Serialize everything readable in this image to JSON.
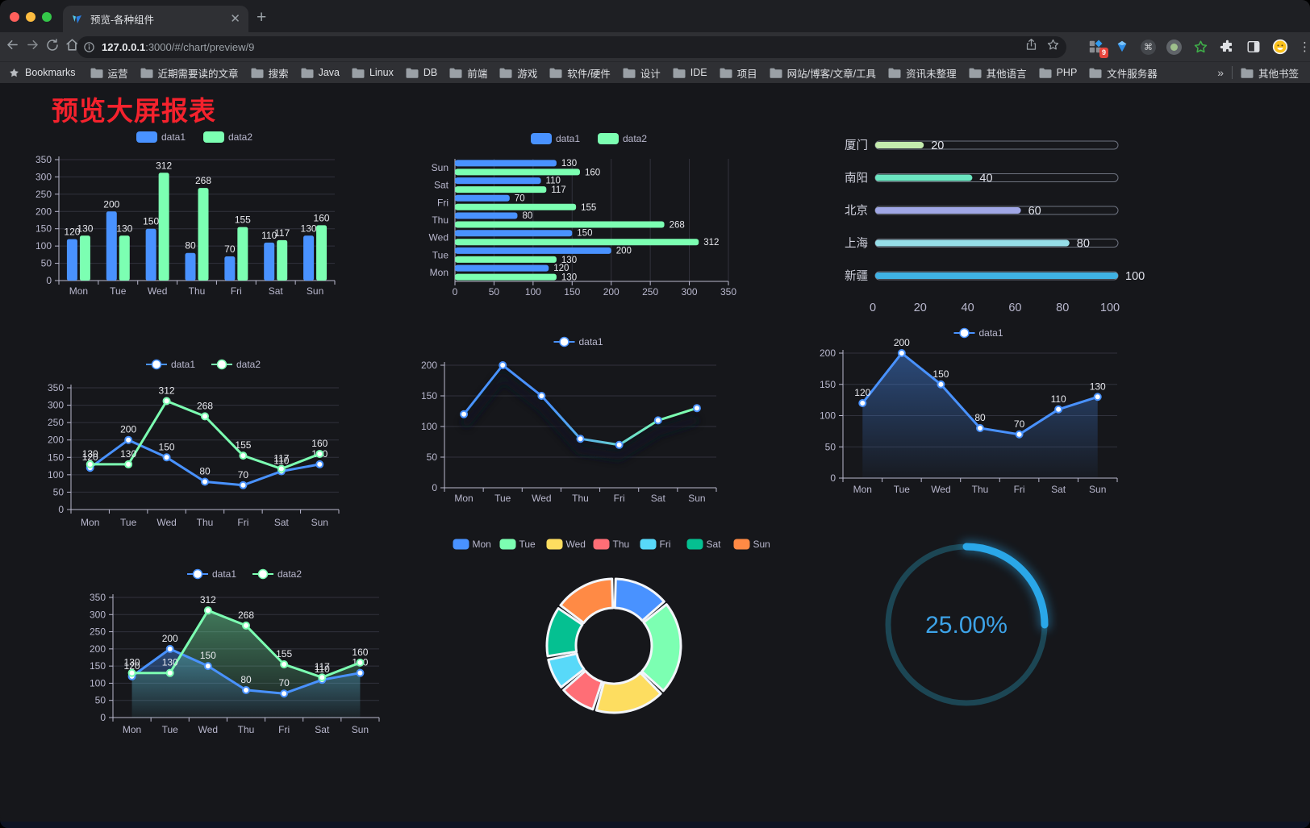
{
  "browser": {
    "tab_title": "预览-各种组件",
    "url_host": "127.0.0.1",
    "url_rest": ":3000/#/chart/preview/9",
    "bookmarks_label": "Bookmarks",
    "bookmark_folders": [
      "运营",
      "近期需要读的文章",
      "搜索",
      "Java",
      "Linux",
      "DB",
      "前端",
      "游戏",
      "软件/硬件",
      "设计",
      "IDE",
      "项目",
      "网站/博客/文章/工具",
      "资讯未整理",
      "其他语言",
      "PHP",
      "文件服务器"
    ],
    "overflow_chevron": "»",
    "other_bookmarks": "其他书签",
    "extension_badge": "9"
  },
  "page": {
    "title": "预览大屏报表"
  },
  "chart_data": [
    {
      "id": "bar-vertical",
      "type": "bar",
      "categories": [
        "Mon",
        "Tue",
        "Wed",
        "Thu",
        "Fri",
        "Sat",
        "Sun"
      ],
      "series": [
        {
          "name": "data1",
          "color": "#4992ff",
          "values": [
            120,
            200,
            150,
            80,
            70,
            110,
            130
          ]
        },
        {
          "name": "data2",
          "color": "#7cffb2",
          "values": [
            130,
            130,
            312,
            268,
            155,
            117,
            160
          ]
        }
      ],
      "ylim": [
        0,
        350
      ],
      "yticks": [
        0,
        50,
        100,
        150,
        200,
        250,
        300,
        350
      ]
    },
    {
      "id": "bar-horizontal",
      "type": "hbar",
      "categories_top_to_bottom": [
        "Sun",
        "Sat",
        "Fri",
        "Thu",
        "Wed",
        "Tue",
        "Mon"
      ],
      "series": [
        {
          "name": "data1",
          "color": "#4992ff",
          "values_top_to_bottom": [
            130,
            110,
            70,
            80,
            150,
            200,
            120
          ]
        },
        {
          "name": "data2",
          "color": "#7cffb2",
          "values_top_to_bottom": [
            160,
            117,
            155,
            268,
            312,
            130,
            130
          ]
        }
      ],
      "xlim": [
        0,
        350
      ],
      "xticks": [
        0,
        50,
        100,
        150,
        200,
        250,
        300,
        350
      ]
    },
    {
      "id": "progress",
      "type": "progress",
      "items": [
        {
          "label": "厦门",
          "value": 20,
          "color": "#c4ebad"
        },
        {
          "label": "南阳",
          "value": 40,
          "color": "#6be6c1"
        },
        {
          "label": "北京",
          "value": 60,
          "color": "#a0a7e6"
        },
        {
          "label": "上海",
          "value": 80,
          "color": "#96dee8"
        },
        {
          "label": "新疆",
          "value": 100,
          "color": "#3fb1e3"
        }
      ],
      "xlim": [
        0,
        100
      ],
      "xticks": [
        0,
        20,
        40,
        60,
        80,
        100
      ]
    },
    {
      "id": "line-dual",
      "type": "line",
      "categories": [
        "Mon",
        "Tue",
        "Wed",
        "Thu",
        "Fri",
        "Sat",
        "Sun"
      ],
      "series": [
        {
          "name": "data1",
          "color": "#4992ff",
          "values": [
            120,
            200,
            150,
            80,
            70,
            110,
            130
          ],
          "labels": true
        },
        {
          "name": "data2",
          "color": "#7cffb2",
          "values": [
            130,
            130,
            312,
            268,
            155,
            117,
            160
          ],
          "labels": true
        }
      ],
      "ylim": [
        0,
        350
      ],
      "yticks": [
        0,
        50,
        100,
        150,
        200,
        250,
        300,
        350
      ]
    },
    {
      "id": "line-gradient",
      "type": "line",
      "categories": [
        "Mon",
        "Tue",
        "Wed",
        "Thu",
        "Fri",
        "Sat",
        "Sun"
      ],
      "series": [
        {
          "name": "data1",
          "color": "#4992ff",
          "gradient": [
            "#4992ff",
            "#7cffb2"
          ],
          "shadow": true,
          "values": [
            120,
            200,
            150,
            80,
            70,
            110,
            130
          ]
        }
      ],
      "ylim": [
        0,
        200
      ],
      "yticks": [
        0,
        50,
        100,
        150,
        200
      ]
    },
    {
      "id": "line-area",
      "type": "area",
      "categories": [
        "Mon",
        "Tue",
        "Wed",
        "Thu",
        "Fri",
        "Sat",
        "Sun"
      ],
      "series": [
        {
          "name": "data1",
          "color": "#4992ff",
          "area": true,
          "labels": true,
          "values": [
            120,
            200,
            150,
            80,
            70,
            110,
            130
          ]
        }
      ],
      "ylim": [
        0,
        200
      ],
      "yticks": [
        0,
        50,
        100,
        150,
        200
      ]
    },
    {
      "id": "line-area-dual",
      "type": "area",
      "categories": [
        "Mon",
        "Tue",
        "Wed",
        "Thu",
        "Fri",
        "Sat",
        "Sun"
      ],
      "series": [
        {
          "name": "data1",
          "color": "#4992ff",
          "area": true,
          "labels": true,
          "values": [
            120,
            200,
            150,
            80,
            70,
            110,
            130
          ]
        },
        {
          "name": "data2",
          "color": "#7cffb2",
          "area": true,
          "labels": true,
          "values": [
            130,
            130,
            312,
            268,
            155,
            117,
            160
          ]
        }
      ],
      "ylim": [
        0,
        350
      ],
      "yticks": [
        0,
        50,
        100,
        150,
        200,
        250,
        300,
        350
      ]
    },
    {
      "id": "donut",
      "type": "pie",
      "items": [
        {
          "label": "Mon",
          "value": 120,
          "color": "#4992ff"
        },
        {
          "label": "Tue",
          "value": 200,
          "color": "#7cffb2"
        },
        {
          "label": "Wed",
          "value": 150,
          "color": "#fddd60"
        },
        {
          "label": "Thu",
          "value": 80,
          "color": "#ff6e76"
        },
        {
          "label": "Fri",
          "value": 70,
          "color": "#58d9f9"
        },
        {
          "label": "Sat",
          "value": 110,
          "color": "#05c091"
        },
        {
          "label": "Sun",
          "value": 130,
          "color": "#ff8a45"
        }
      ]
    },
    {
      "id": "gauge",
      "type": "gauge",
      "value": 25,
      "display": "25.00%",
      "arc_color": "#2aa7e8",
      "track_color": "#1c4654",
      "text_color": "#3da3e8"
    }
  ]
}
